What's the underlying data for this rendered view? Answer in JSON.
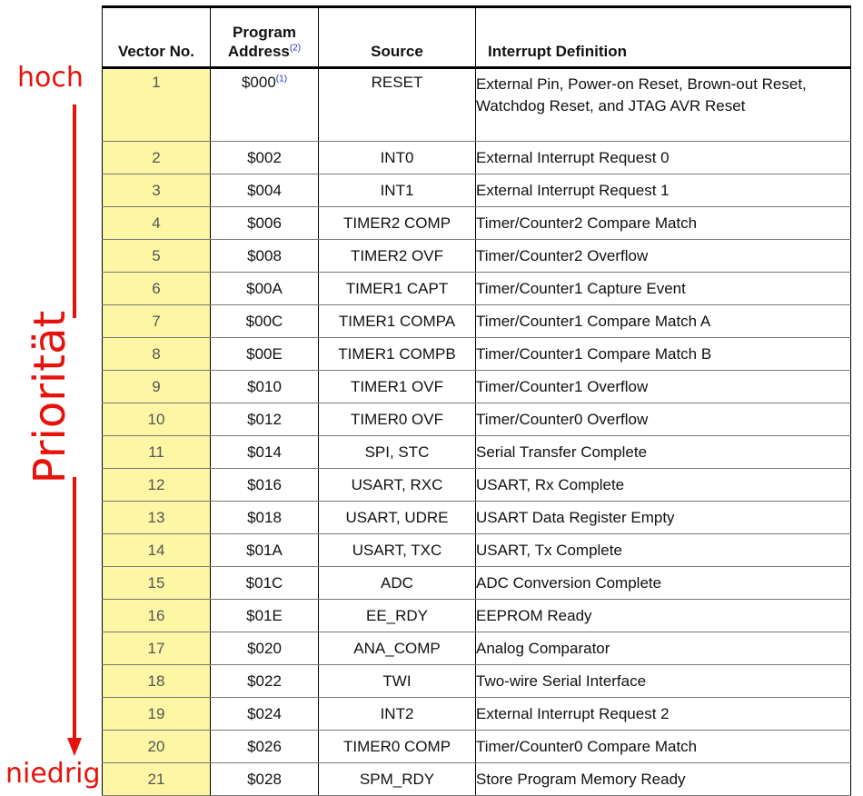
{
  "annotations": {
    "high": "hoch",
    "low": "niedrig",
    "axis": "Priorität",
    "color": "#e8120c"
  },
  "table": {
    "headers": {
      "vector": "Vector No.",
      "address_line1": "Program",
      "address_line2": "Address",
      "address_note": "(2)",
      "source": "Source",
      "definition": "Interrupt Definition"
    },
    "first_row_address_note": "(1)",
    "rows": [
      {
        "vector": "1",
        "address": "$000",
        "source": "RESET",
        "definition": "External Pin, Power-on Reset, Brown-out Reset, Watchdog Reset, and JTAG AVR Reset"
      },
      {
        "vector": "2",
        "address": "$002",
        "source": "INT0",
        "definition": "External Interrupt Request 0"
      },
      {
        "vector": "3",
        "address": "$004",
        "source": "INT1",
        "definition": "External Interrupt Request 1"
      },
      {
        "vector": "4",
        "address": "$006",
        "source": "TIMER2 COMP",
        "definition": "Timer/Counter2 Compare Match"
      },
      {
        "vector": "5",
        "address": "$008",
        "source": "TIMER2 OVF",
        "definition": "Timer/Counter2 Overflow"
      },
      {
        "vector": "6",
        "address": "$00A",
        "source": "TIMER1 CAPT",
        "definition": "Timer/Counter1 Capture Event"
      },
      {
        "vector": "7",
        "address": "$00C",
        "source": "TIMER1 COMPA",
        "definition": "Timer/Counter1 Compare Match A"
      },
      {
        "vector": "8",
        "address": "$00E",
        "source": "TIMER1 COMPB",
        "definition": "Timer/Counter1 Compare Match B"
      },
      {
        "vector": "9",
        "address": "$010",
        "source": "TIMER1 OVF",
        "definition": "Timer/Counter1 Overflow"
      },
      {
        "vector": "10",
        "address": "$012",
        "source": "TIMER0 OVF",
        "definition": "Timer/Counter0 Overflow"
      },
      {
        "vector": "11",
        "address": "$014",
        "source": "SPI, STC",
        "definition": "Serial Transfer Complete"
      },
      {
        "vector": "12",
        "address": "$016",
        "source": "USART, RXC",
        "definition": "USART, Rx Complete"
      },
      {
        "vector": "13",
        "address": "$018",
        "source": "USART, UDRE",
        "definition": "USART Data Register Empty"
      },
      {
        "vector": "14",
        "address": "$01A",
        "source": "USART, TXC",
        "definition": "USART, Tx Complete"
      },
      {
        "vector": "15",
        "address": "$01C",
        "source": "ADC",
        "definition": "ADC Conversion Complete"
      },
      {
        "vector": "16",
        "address": "$01E",
        "source": "EE_RDY",
        "definition": "EEPROM Ready"
      },
      {
        "vector": "17",
        "address": "$020",
        "source": "ANA_COMP",
        "definition": "Analog Comparator"
      },
      {
        "vector": "18",
        "address": "$022",
        "source": "TWI",
        "definition": "Two-wire Serial Interface"
      },
      {
        "vector": "19",
        "address": "$024",
        "source": "INT2",
        "definition": "External Interrupt Request 2"
      },
      {
        "vector": "20",
        "address": "$026",
        "source": "TIMER0 COMP",
        "definition": "Timer/Counter0 Compare Match"
      },
      {
        "vector": "21",
        "address": "$028",
        "source": "SPM_RDY",
        "definition": "Store Program Memory Ready"
      }
    ]
  }
}
